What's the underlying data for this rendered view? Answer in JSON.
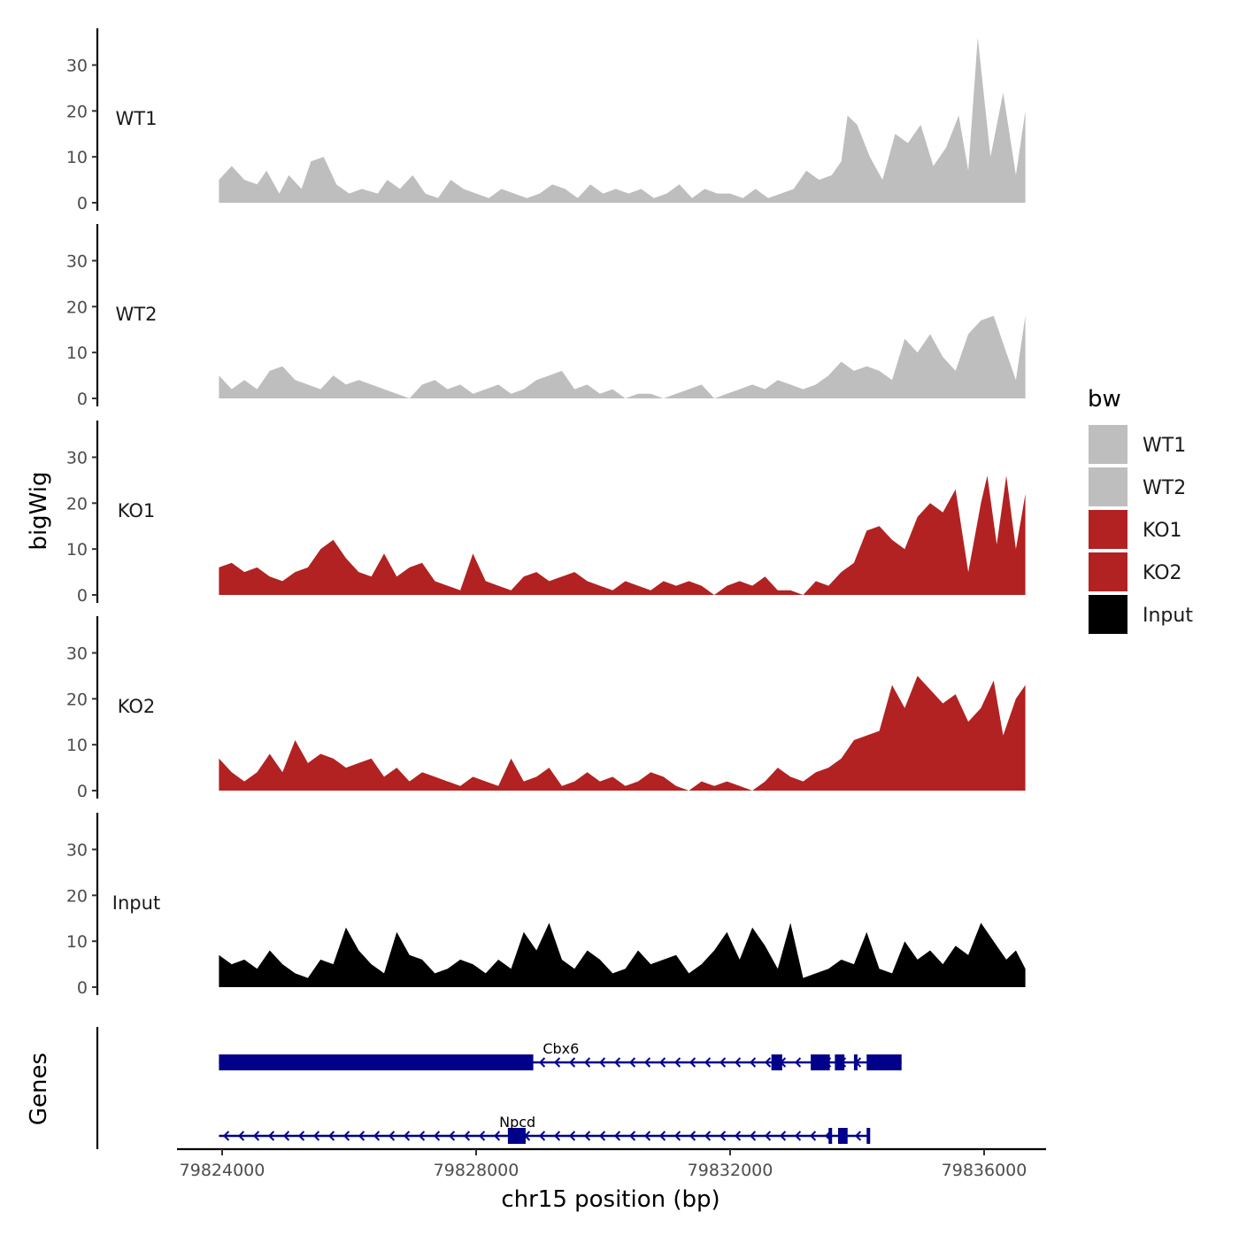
{
  "chart_data": {
    "type": "area",
    "ylabel": "bigWig",
    "xlabel": "chr15 position (bp)",
    "gene_panel_label": "Genes",
    "xlim": [
      79823250,
      79837600
    ],
    "x_ticks": [
      79824000,
      79828000,
      79832000,
      79836000
    ],
    "x_tick_labels": [
      "79824000",
      "79828000",
      "79832000",
      "79836000"
    ],
    "ylim": [
      0,
      38
    ],
    "y_ticks": [
      0,
      10,
      20,
      30
    ],
    "y_tick_labels": [
      "0",
      "10",
      "20",
      "30"
    ],
    "legend": {
      "title": "bw",
      "position": "right",
      "entries": [
        {
          "label": "WT1",
          "color": "#bebebe"
        },
        {
          "label": "WT2",
          "color": "#bebebe"
        },
        {
          "label": "KO1",
          "color": "#b22222"
        },
        {
          "label": "KO2",
          "color": "#b22222"
        },
        {
          "label": "Input",
          "color": "#000000"
        }
      ]
    },
    "series": [
      {
        "name": "WT1",
        "color": "#bebebe",
        "x": [
          79823950,
          79824150,
          79824350,
          79824550,
          79824700,
          79824900,
          79825050,
          79825250,
          79825400,
          79825600,
          79825800,
          79826000,
          79826200,
          79826450,
          79826600,
          79826800,
          79827000,
          79827200,
          79827400,
          79827600,
          79827800,
          79828000,
          79828200,
          79828400,
          79828600,
          79828800,
          79829000,
          79829200,
          79829400,
          79829600,
          79829800,
          79830000,
          79830200,
          79830400,
          79830600,
          79830800,
          79831000,
          79831200,
          79831400,
          79831600,
          79831800,
          79832000,
          79832200,
          79832400,
          79832600,
          79832800,
          79833000,
          79833200,
          79833400,
          79833600,
          79833750,
          79833850,
          79834000,
          79834200,
          79834400,
          79834600,
          79834800,
          79835000,
          79835200,
          79835400,
          79835600,
          79835750,
          79835900,
          79836100,
          79836300,
          79836500,
          79836650
        ],
        "y": [
          5,
          8,
          5,
          4,
          7,
          2,
          6,
          3,
          9,
          10,
          4,
          2,
          3,
          2,
          5,
          3,
          6,
          2,
          1,
          5,
          3,
          2,
          1,
          3,
          2,
          1,
          2,
          4,
          3,
          1,
          4,
          2,
          3,
          2,
          3,
          1,
          2,
          4,
          1,
          3,
          2,
          2,
          1,
          3,
          1,
          2,
          3,
          7,
          5,
          6,
          9,
          19,
          17,
          10,
          5,
          15,
          13,
          17,
          8,
          12,
          19,
          7,
          36,
          10,
          24,
          6,
          20
        ]
      },
      {
        "name": "WT2",
        "color": "#bebebe",
        "x": [
          79823950,
          79824150,
          79824350,
          79824550,
          79824750,
          79824950,
          79825150,
          79825350,
          79825550,
          79825750,
          79825950,
          79826150,
          79826350,
          79826550,
          79826750,
          79826950,
          79827150,
          79827350,
          79827550,
          79827750,
          79827950,
          79828150,
          79828350,
          79828550,
          79828750,
          79828950,
          79829150,
          79829350,
          79829550,
          79829750,
          79829950,
          79830150,
          79830350,
          79830550,
          79830750,
          79830950,
          79831150,
          79831350,
          79831550,
          79831750,
          79831950,
          79832150,
          79832350,
          79832550,
          79832750,
          79832950,
          79833150,
          79833350,
          79833550,
          79833750,
          79833950,
          79834150,
          79834350,
          79834550,
          79834750,
          79834950,
          79835150,
          79835350,
          79835550,
          79835750,
          79835950,
          79836150,
          79836350,
          79836500,
          79836650
        ],
        "y": [
          5,
          2,
          4,
          2,
          6,
          7,
          4,
          3,
          2,
          5,
          3,
          4,
          3,
          2,
          1,
          0,
          3,
          4,
          2,
          3,
          1,
          2,
          3,
          1,
          2,
          4,
          5,
          6,
          2,
          3,
          1,
          2,
          0,
          1,
          1,
          0,
          1,
          2,
          3,
          0,
          1,
          2,
          3,
          2,
          4,
          3,
          2,
          3,
          5,
          8,
          6,
          7,
          6,
          4,
          13,
          10,
          14,
          9,
          6,
          14,
          17,
          18,
          10,
          4,
          18
        ]
      },
      {
        "name": "KO1",
        "color": "#b22222",
        "x": [
          79823950,
          79824150,
          79824350,
          79824550,
          79824750,
          79824950,
          79825150,
          79825350,
          79825550,
          79825750,
          79825950,
          79826150,
          79826350,
          79826550,
          79826750,
          79826950,
          79827150,
          79827350,
          79827550,
          79827750,
          79827950,
          79828150,
          79828350,
          79828550,
          79828750,
          79828950,
          79829150,
          79829350,
          79829550,
          79829750,
          79829950,
          79830150,
          79830350,
          79830550,
          79830750,
          79830950,
          79831150,
          79831350,
          79831550,
          79831750,
          79831950,
          79832150,
          79832350,
          79832550,
          79832750,
          79832950,
          79833150,
          79833350,
          79833550,
          79833750,
          79833950,
          79834150,
          79834350,
          79834550,
          79834750,
          79834950,
          79835150,
          79835350,
          79835550,
          79835750,
          79835950,
          79836050,
          79836200,
          79836350,
          79836500,
          79836650
        ],
        "y": [
          6,
          7,
          5,
          6,
          4,
          3,
          5,
          6,
          10,
          12,
          8,
          5,
          4,
          9,
          4,
          6,
          7,
          3,
          2,
          1,
          9,
          3,
          2,
          1,
          4,
          5,
          3,
          4,
          5,
          3,
          2,
          1,
          3,
          2,
          1,
          3,
          2,
          3,
          2,
          0,
          2,
          3,
          2,
          4,
          1,
          1,
          0,
          3,
          2,
          5,
          7,
          14,
          15,
          12,
          10,
          17,
          20,
          18,
          23,
          5,
          20,
          26,
          11,
          26,
          10,
          22
        ]
      },
      {
        "name": "KO2",
        "color": "#b22222",
        "x": [
          79823950,
          79824150,
          79824350,
          79824550,
          79824750,
          79824950,
          79825150,
          79825350,
          79825550,
          79825750,
          79825950,
          79826150,
          79826350,
          79826550,
          79826750,
          79826950,
          79827150,
          79827350,
          79827550,
          79827750,
          79827950,
          79828150,
          79828350,
          79828550,
          79828750,
          79828950,
          79829150,
          79829350,
          79829550,
          79829750,
          79829950,
          79830150,
          79830350,
          79830550,
          79830750,
          79830950,
          79831150,
          79831350,
          79831550,
          79831750,
          79831950,
          79832150,
          79832350,
          79832550,
          79832750,
          79832950,
          79833150,
          79833350,
          79833550,
          79833750,
          79833950,
          79834150,
          79834350,
          79834550,
          79834750,
          79834950,
          79835150,
          79835350,
          79835550,
          79835750,
          79835950,
          79836150,
          79836300,
          79836500,
          79836650
        ],
        "y": [
          7,
          4,
          2,
          4,
          8,
          4,
          11,
          6,
          8,
          7,
          5,
          6,
          7,
          3,
          5,
          2,
          4,
          3,
          2,
          1,
          3,
          2,
          1,
          7,
          2,
          3,
          5,
          1,
          2,
          4,
          2,
          3,
          1,
          2,
          4,
          3,
          1,
          0,
          2,
          1,
          2,
          1,
          0,
          2,
          5,
          3,
          2,
          4,
          5,
          7,
          11,
          12,
          13,
          23,
          18,
          25,
          22,
          19,
          21,
          15,
          18,
          24,
          12,
          20,
          23
        ]
      },
      {
        "name": "Input",
        "color": "#000000",
        "x": [
          79823950,
          79824150,
          79824350,
          79824550,
          79824750,
          79824950,
          79825150,
          79825350,
          79825550,
          79825750,
          79825950,
          79826150,
          79826350,
          79826550,
          79826750,
          79826950,
          79827150,
          79827350,
          79827550,
          79827750,
          79827950,
          79828150,
          79828350,
          79828550,
          79828750,
          79828950,
          79829150,
          79829350,
          79829550,
          79829750,
          79829950,
          79830150,
          79830350,
          79830550,
          79830750,
          79830950,
          79831150,
          79831350,
          79831550,
          79831750,
          79831950,
          79832150,
          79832350,
          79832550,
          79832750,
          79832950,
          79833150,
          79833350,
          79833550,
          79833750,
          79833950,
          79834150,
          79834350,
          79834550,
          79834750,
          79834950,
          79835150,
          79835350,
          79835550,
          79835750,
          79835950,
          79836150,
          79836350,
          79836500,
          79836650
        ],
        "y": [
          7,
          5,
          6,
          4,
          8,
          5,
          3,
          2,
          6,
          5,
          13,
          8,
          5,
          3,
          12,
          7,
          6,
          3,
          4,
          6,
          5,
          3,
          6,
          4,
          12,
          8,
          14,
          6,
          4,
          8,
          6,
          3,
          4,
          8,
          5,
          6,
          7,
          3,
          5,
          8,
          12,
          6,
          13,
          9,
          4,
          14,
          2,
          3,
          4,
          6,
          5,
          12,
          4,
          3,
          10,
          6,
          8,
          5,
          9,
          7,
          14,
          10,
          6,
          8,
          4
        ]
      }
    ],
    "genes": [
      {
        "name": "Cbx6",
        "strand": "-",
        "span": [
          79823950,
          79834700
        ],
        "exons": [
          [
            79823950,
            79828900
          ],
          [
            79832650,
            79832820
          ],
          [
            79833270,
            79833570
          ],
          [
            79833650,
            79833800
          ],
          [
            79833950,
            79834000
          ],
          [
            79834150,
            79834700
          ]
        ],
        "label_x": 79829050
      },
      {
        "name": "Npcd",
        "strand": "-",
        "span": [
          79823950,
          79834200
        ],
        "exons": [
          [
            79828500,
            79828780
          ],
          [
            79833550,
            79833600
          ],
          [
            79833700,
            79833850
          ],
          [
            79834150,
            79834200
          ]
        ],
        "label_x": 79828650
      }
    ]
  }
}
